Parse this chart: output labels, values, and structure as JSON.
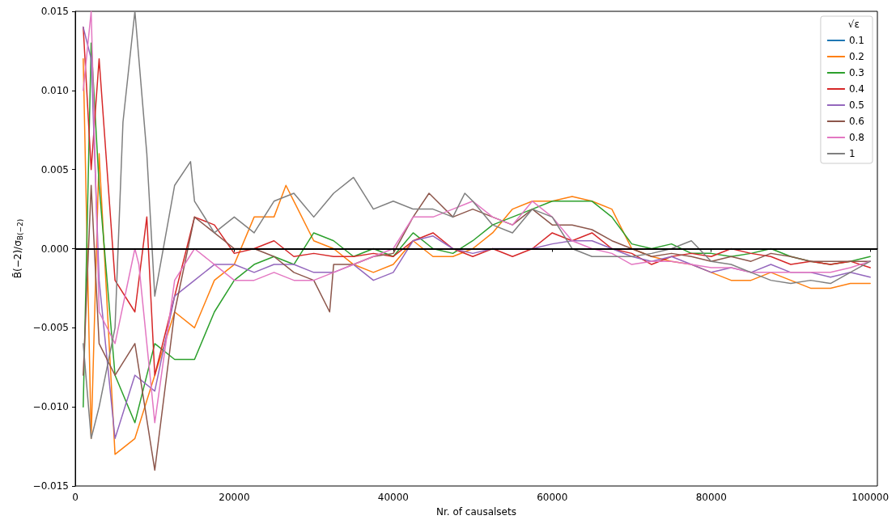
{
  "chart_data": {
    "type": "line",
    "xlabel": "Nr. of causalsets",
    "ylabel": "B̄(−2)/σ$_{B(−2)}$",
    "legend_title": "√ε",
    "xlim": [
      0,
      100900
    ],
    "xticks": [
      0,
      20000,
      40000,
      60000,
      80000,
      100000
    ],
    "ylim": [
      -0.015,
      0.015
    ],
    "yticks": [
      {
        "value": -0.015,
        "label": "−0.015"
      },
      {
        "value": -0.01,
        "label": "−0.010"
      },
      {
        "value": -0.005,
        "label": "−0.005"
      },
      {
        "value": 0,
        "label": "0.000"
      },
      {
        "value": 0.005,
        "label": "0.005"
      },
      {
        "value": 0.01,
        "label": "0.010"
      },
      {
        "value": 0.015,
        "label": "0.015"
      }
    ],
    "grid": false,
    "legend": "top right",
    "marker": "none",
    "line_style": "solid",
    "ref_lines": [
      {
        "axis": "y",
        "value": 0,
        "color": "#000000",
        "line_style": "solid"
      }
    ],
    "series": [
      {
        "name": "0.1",
        "color": "#1f77b4"
      },
      {
        "name": "0.2",
        "color": "#ff7f0e",
        "x": [
          1000,
          2000,
          3000,
          5000,
          7500,
          10000,
          12500,
          15000,
          17500,
          20000,
          22500,
          25000,
          26500,
          27500,
          30000,
          32500,
          35000,
          37500,
          40000,
          42500,
          45000,
          47500,
          50000,
          52500,
          55000,
          57500,
          60000,
          62500,
          65000,
          67500,
          70000,
          72500,
          75000,
          77500,
          80000,
          82500,
          85000,
          87500,
          90000,
          92500,
          95000,
          97500,
          100000
        ],
        "values": [
          0.012,
          -0.012,
          0.006,
          -0.013,
          -0.012,
          -0.008,
          -0.004,
          -0.005,
          -0.002,
          -0.001,
          0.002,
          0.002,
          0.004,
          0.003,
          0.0005,
          0.0,
          -0.001,
          -0.0015,
          -0.001,
          0.0005,
          -0.0005,
          -0.0005,
          0.0,
          0.001,
          0.0025,
          0.003,
          0.003,
          0.0033,
          0.003,
          0.0025,
          0.0,
          -0.0005,
          -0.0008,
          -0.001,
          -0.0015,
          -0.002,
          -0.002,
          -0.0015,
          -0.002,
          -0.0025,
          -0.0025,
          -0.0022,
          -0.0022
        ]
      },
      {
        "name": "0.3",
        "color": "#2ca02c",
        "x": [
          1000,
          2000,
          3000,
          5000,
          7500,
          10000,
          12500,
          15000,
          17500,
          20000,
          22500,
          25000,
          27500,
          30000,
          32500,
          35000,
          37500,
          40000,
          42500,
          45000,
          47500,
          50000,
          52500,
          55000,
          57500,
          60000,
          62500,
          65000,
          67500,
          70000,
          72500,
          75000,
          77500,
          80000,
          82500,
          85000,
          87500,
          90000,
          92500,
          95000,
          97500,
          100000
        ],
        "values": [
          -0.01,
          0.013,
          0.004,
          -0.008,
          -0.011,
          -0.006,
          -0.007,
          -0.007,
          -0.004,
          -0.002,
          -0.001,
          -0.0005,
          -0.001,
          0.001,
          0.0005,
          -0.0005,
          0.0,
          -0.0005,
          0.001,
          0.0,
          -0.0003,
          0.0005,
          0.0015,
          0.002,
          0.0025,
          0.003,
          0.003,
          0.003,
          0.002,
          0.0003,
          0.0,
          0.0003,
          -0.0003,
          -0.0003,
          -0.0005,
          -0.0003,
          0.0,
          -0.0005,
          -0.0008,
          -0.001,
          -0.0008,
          -0.0005
        ]
      },
      {
        "name": "0.4",
        "color": "#d62728",
        "x": [
          1000,
          2000,
          3000,
          5000,
          7500,
          9000,
          10000,
          12500,
          15000,
          17500,
          20000,
          22500,
          25000,
          27500,
          30000,
          32500,
          35000,
          37500,
          40000,
          42500,
          45000,
          47500,
          50000,
          52500,
          55000,
          57500,
          60000,
          62500,
          65000,
          67500,
          70000,
          72500,
          75000,
          77500,
          80000,
          82500,
          85000,
          87500,
          90000,
          92500,
          95000,
          97500,
          100000
        ],
        "values": [
          0.014,
          0.005,
          0.012,
          -0.002,
          -0.004,
          0.002,
          -0.008,
          -0.003,
          0.002,
          0.0015,
          -0.0003,
          0.0,
          0.0005,
          -0.0005,
          -0.0003,
          -0.0005,
          -0.0005,
          -0.0003,
          -0.0005,
          0.0005,
          0.001,
          0.0,
          -0.0005,
          0.0,
          -0.0005,
          0.0,
          0.001,
          0.0005,
          0.001,
          0.0,
          -0.0003,
          -0.001,
          -0.0005,
          -0.0003,
          -0.0005,
          0.0,
          -0.0003,
          -0.0005,
          -0.001,
          -0.0008,
          -0.001,
          -0.0008,
          -0.0012
        ]
      },
      {
        "name": "0.5",
        "color": "#9467bd",
        "x": [
          1000,
          2000,
          3000,
          5000,
          7500,
          10000,
          12500,
          15000,
          17500,
          20000,
          22500,
          25000,
          27500,
          30000,
          32500,
          35000,
          37500,
          40000,
          42500,
          45000,
          47500,
          50000,
          52500,
          55000,
          57500,
          60000,
          62500,
          65000,
          67500,
          70000,
          72500,
          75000,
          77500,
          80000,
          82500,
          85000,
          87500,
          90000,
          92500,
          95000,
          97500,
          100000
        ],
        "values": [
          0.014,
          0.012,
          -0.002,
          -0.012,
          -0.008,
          -0.009,
          -0.003,
          -0.002,
          -0.001,
          -0.001,
          -0.0015,
          -0.001,
          -0.001,
          -0.0015,
          -0.0015,
          -0.001,
          -0.002,
          -0.0015,
          0.0005,
          0.0008,
          0.0,
          -0.0003,
          0.0,
          0.0,
          0.0,
          0.0003,
          0.0005,
          0.0005,
          0.0,
          -0.0005,
          -0.0008,
          -0.0005,
          -0.001,
          -0.0015,
          -0.0012,
          -0.0015,
          -0.001,
          -0.0015,
          -0.0015,
          -0.0018,
          -0.0015,
          -0.0018
        ]
      },
      {
        "name": "0.6",
        "color": "#8c564b",
        "x": [
          1000,
          2000,
          3000,
          5000,
          7500,
          10000,
          12500,
          15000,
          17500,
          20000,
          22500,
          25000,
          27500,
          30000,
          32000,
          32500,
          35000,
          37500,
          40000,
          42500,
          44500,
          47500,
          50000,
          52500,
          55000,
          57500,
          60000,
          62500,
          65000,
          67500,
          70000,
          72500,
          75000,
          77500,
          80000,
          82500,
          85000,
          87500,
          90000,
          92500,
          95000,
          97500,
          100000
        ],
        "values": [
          -0.008,
          0.004,
          -0.006,
          -0.008,
          -0.006,
          -0.014,
          -0.004,
          0.002,
          0.001,
          0.0,
          0.0,
          -0.0005,
          -0.0015,
          -0.002,
          -0.004,
          -0.001,
          -0.001,
          -0.0005,
          -0.0003,
          0.002,
          0.0035,
          0.002,
          0.0025,
          0.002,
          0.0015,
          0.0025,
          0.0015,
          0.0015,
          0.0012,
          0.0005,
          0.0,
          -0.0005,
          -0.0003,
          -0.0005,
          -0.0008,
          -0.0005,
          -0.0008,
          -0.0003,
          -0.0005,
          -0.0008,
          -0.0008,
          -0.0008,
          -0.0008
        ]
      },
      {
        "name": "0.8",
        "color": "#e377c2",
        "x": [
          1000,
          2000,
          3000,
          5000,
          7500,
          8000,
          10000,
          12500,
          15000,
          17500,
          20000,
          22500,
          25000,
          27500,
          30000,
          32500,
          35000,
          37500,
          40000,
          42500,
          45000,
          47500,
          50000,
          52500,
          55000,
          57500,
          60000,
          62500,
          65000,
          67500,
          70000,
          72500,
          75000,
          77500,
          80000,
          82500,
          85000,
          87500,
          90000,
          92500,
          95000,
          97500,
          100000
        ],
        "values": [
          0.01,
          0.015,
          -0.004,
          -0.006,
          0.0,
          -0.001,
          -0.011,
          -0.002,
          0.0,
          -0.001,
          -0.002,
          -0.002,
          -0.0015,
          -0.002,
          -0.002,
          -0.0015,
          -0.001,
          -0.0005,
          0.0,
          0.002,
          0.002,
          0.0025,
          0.003,
          0.002,
          0.0015,
          0.003,
          0.002,
          0.0005,
          0.0,
          -0.0003,
          -0.001,
          -0.0008,
          -0.0008,
          -0.001,
          -0.0012,
          -0.0012,
          -0.0015,
          -0.0015,
          -0.0015,
          -0.0015,
          -0.0015,
          -0.0012,
          -0.0008
        ]
      },
      {
        "name": "1",
        "color": "#7f7f7f",
        "x": [
          1000,
          2000,
          3000,
          5000,
          6000,
          7500,
          9000,
          10000,
          12500,
          14500,
          15000,
          17500,
          20000,
          22500,
          25000,
          27500,
          30000,
          32500,
          35000,
          37500,
          40000,
          42500,
          45000,
          47500,
          49000,
          50000,
          52500,
          55000,
          57500,
          60000,
          62500,
          65000,
          67500,
          70000,
          72500,
          75000,
          77500,
          80000,
          82500,
          85000,
          87500,
          90000,
          92500,
          95000,
          97500,
          100000
        ],
        "values": [
          -0.006,
          -0.012,
          -0.01,
          -0.005,
          0.008,
          0.015,
          0.006,
          -0.003,
          0.004,
          0.0055,
          0.003,
          0.001,
          0.002,
          0.001,
          0.003,
          0.0035,
          0.002,
          0.0035,
          0.0045,
          0.0025,
          0.003,
          0.0025,
          0.0025,
          0.002,
          0.0035,
          0.003,
          0.0015,
          0.001,
          0.0025,
          0.002,
          0.0,
          -0.0005,
          -0.0005,
          -0.0005,
          -0.0003,
          0.0,
          0.0005,
          -0.0008,
          -0.001,
          -0.0015,
          -0.002,
          -0.0022,
          -0.002,
          -0.0022,
          -0.0015,
          -0.0008
        ]
      }
    ]
  }
}
